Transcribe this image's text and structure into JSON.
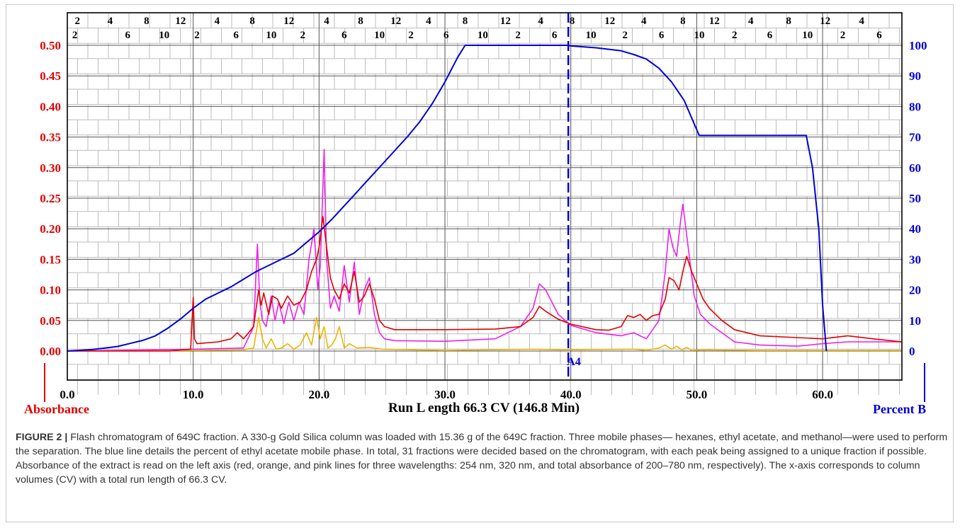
{
  "chart_data": {
    "type": "line",
    "xlabel": "Run L ength 66.3 CV (146.8 Min)",
    "y_left_label": "Absorbance",
    "y_right_label": "Percent B",
    "xlim": [
      0,
      66.3
    ],
    "ylim_left": [
      0,
      0.5
    ],
    "ylim_right": [
      0,
      100
    ],
    "x_ticks": [
      "0.0",
      "10.0",
      "20.0",
      "30.0",
      "40.0",
      "50.0",
      "60.0"
    ],
    "x_tick_values": [
      0,
      10,
      20,
      30,
      40,
      50,
      60
    ],
    "y_left_ticks": [
      "0.00",
      "0.05",
      "0.10",
      "0.15",
      "0.20",
      "0.25",
      "0.30",
      "0.35",
      "0.40",
      "0.45",
      "0.50"
    ],
    "y_left_tick_values": [
      0,
      0.05,
      0.1,
      0.15,
      0.2,
      0.25,
      0.3,
      0.35,
      0.4,
      0.45,
      0.5
    ],
    "y_right_ticks": [
      "0",
      "10",
      "20",
      "30",
      "40",
      "50",
      "60",
      "70",
      "80",
      "90",
      "100"
    ],
    "y_right_tick_values": [
      0,
      10,
      20,
      30,
      40,
      50,
      60,
      70,
      80,
      90,
      100
    ],
    "grid": true,
    "marker": {
      "label": "A4",
      "x": 39.8
    },
    "fraction_ticks": {
      "row1": [
        [
          "2",
          0.8
        ],
        [
          "4",
          3.4
        ],
        [
          "8",
          6.3
        ],
        [
          "12",
          9.0
        ],
        [
          "4",
          11.9
        ],
        [
          "8",
          14.7
        ],
        [
          "12",
          17.6
        ],
        [
          "4",
          20.6
        ],
        [
          "8",
          23.3
        ],
        [
          "12",
          26.1
        ],
        [
          "4",
          28.7
        ],
        [
          "8",
          31.6
        ],
        [
          "12",
          34.8
        ],
        [
          "4",
          37.6
        ],
        [
          "8",
          40.1
        ],
        [
          "12",
          43.1
        ],
        [
          "4",
          45.8
        ],
        [
          "8",
          48.9
        ],
        [
          "12",
          51.4
        ],
        [
          "4",
          54.3
        ],
        [
          "8",
          57.3
        ],
        [
          "12",
          60.2
        ],
        [
          "4",
          63.1
        ]
      ],
      "row2": [
        [
          "2",
          0.6
        ],
        [
          "6",
          4.8
        ],
        [
          "10",
          7.7
        ],
        [
          "2",
          10.3
        ],
        [
          "6",
          13.4
        ],
        [
          "10",
          16.2
        ],
        [
          "2",
          18.7
        ],
        [
          "6",
          22.0
        ],
        [
          "10",
          24.8
        ],
        [
          "2",
          27.3
        ],
        [
          "6",
          30.1
        ],
        [
          "10",
          33.0
        ],
        [
          "2",
          35.8
        ],
        [
          "6",
          38.7
        ],
        [
          "10",
          41.6
        ],
        [
          "2",
          44.3
        ],
        [
          "6",
          47.2
        ],
        [
          "10",
          50.2
        ],
        [
          "2",
          53.0
        ],
        [
          "6",
          55.8
        ],
        [
          "10",
          58.8
        ],
        [
          "2",
          61.6
        ],
        [
          "6",
          64.5
        ]
      ]
    },
    "series": [
      {
        "name": "Percent B",
        "axis": "right",
        "color": "#0000d6",
        "x": [
          0,
          2,
          3,
          4,
          5,
          6,
          7,
          8,
          9,
          10,
          11,
          12,
          13,
          14,
          15,
          16,
          17,
          18,
          19,
          20,
          21,
          22,
          23,
          24,
          25,
          26,
          27,
          28,
          29,
          30,
          31,
          31.6,
          34,
          37,
          39.8,
          40,
          42,
          44,
          45,
          46,
          47,
          48,
          49,
          50.2,
          54,
          58,
          58.7,
          59.2,
          59.7,
          60.0,
          60.3
        ],
        "values": [
          0,
          0.5,
          1,
          1.5,
          2.5,
          3.5,
          5,
          7.5,
          10.5,
          14,
          17,
          19,
          21,
          23.5,
          26,
          28,
          30,
          32,
          35.5,
          39,
          43,
          47.5,
          52,
          56.5,
          61,
          65.5,
          70,
          75,
          81,
          88,
          96,
          100,
          100,
          100,
          100,
          99.8,
          99.2,
          98.2,
          97,
          95.5,
          92.5,
          88,
          82,
          70.5,
          70.5,
          70.5,
          70.5,
          60,
          40,
          15,
          0
        ]
      },
      {
        "name": "254 nm",
        "axis": "left",
        "color": "#e00000",
        "x": [
          0,
          8,
          9.8,
          10.0,
          10.1,
          10.3,
          12,
          13,
          13.5,
          14,
          14.8,
          15.2,
          15.4,
          15.6,
          16,
          16.3,
          16.7,
          17.0,
          17.5,
          18,
          18.5,
          19,
          19.4,
          19.8,
          20.0,
          20.3,
          20.6,
          20.9,
          21.2,
          21.6,
          22,
          22.4,
          22.8,
          23.2,
          23.6,
          24.0,
          24.4,
          24.8,
          25.2,
          26,
          30,
          34,
          36,
          37,
          37.5,
          38,
          39,
          40,
          42,
          43,
          44,
          44.5,
          45,
          45.5,
          46,
          46.5,
          47,
          47.5,
          47.8,
          48.2,
          48.6,
          48.9,
          49.2,
          49.6,
          50,
          50.5,
          51,
          52,
          53,
          55,
          58,
          60,
          62,
          64,
          66.3
        ],
        "values": [
          0.0,
          0.0,
          0.003,
          0.088,
          0.02,
          0.012,
          0.015,
          0.02,
          0.03,
          0.02,
          0.04,
          0.1,
          0.075,
          0.095,
          0.06,
          0.09,
          0.085,
          0.07,
          0.09,
          0.075,
          0.08,
          0.1,
          0.13,
          0.15,
          0.17,
          0.22,
          0.17,
          0.12,
          0.1,
          0.085,
          0.11,
          0.095,
          0.13,
          0.08,
          0.09,
          0.11,
          0.085,
          0.05,
          0.04,
          0.035,
          0.035,
          0.036,
          0.04,
          0.055,
          0.073,
          0.065,
          0.052,
          0.044,
          0.035,
          0.034,
          0.04,
          0.058,
          0.055,
          0.06,
          0.05,
          0.058,
          0.06,
          0.085,
          0.12,
          0.115,
          0.1,
          0.13,
          0.155,
          0.13,
          0.11,
          0.085,
          0.07,
          0.05,
          0.035,
          0.025,
          0.022,
          0.02,
          0.025,
          0.02,
          0.015
        ]
      },
      {
        "name": "Total absorbance 200–780 nm",
        "axis": "left",
        "color": "#ea22ea",
        "x": [
          0,
          10,
          14,
          14.8,
          15.1,
          15.3,
          15.5,
          15.8,
          16.2,
          16.5,
          16.8,
          17.2,
          17.6,
          18,
          18.4,
          18.8,
          19.2,
          19.6,
          19.9,
          20.1,
          20.4,
          20.6,
          20.9,
          21.2,
          21.6,
          22,
          22.4,
          22.8,
          23.2,
          23.6,
          24.0,
          24.4,
          24.8,
          25.2,
          26,
          30,
          34,
          36,
          37,
          37.5,
          38,
          39,
          40,
          42,
          44,
          45,
          46,
          47,
          47.5,
          47.8,
          48.1,
          48.4,
          48.7,
          48.9,
          49.2,
          49.5,
          49.8,
          50.3,
          51,
          52,
          53,
          55,
          58,
          60,
          62,
          64,
          66.3
        ],
        "values": [
          0.0,
          0.003,
          0.005,
          0.04,
          0.175,
          0.08,
          0.05,
          0.04,
          0.09,
          0.05,
          0.08,
          0.045,
          0.08,
          0.05,
          0.08,
          0.06,
          0.15,
          0.2,
          0.1,
          0.14,
          0.33,
          0.15,
          0.07,
          0.09,
          0.065,
          0.14,
          0.08,
          0.145,
          0.06,
          0.1,
          0.12,
          0.06,
          0.03,
          0.02,
          0.017,
          0.016,
          0.02,
          0.04,
          0.07,
          0.11,
          0.1,
          0.06,
          0.042,
          0.03,
          0.025,
          0.03,
          0.02,
          0.05,
          0.13,
          0.2,
          0.17,
          0.155,
          0.21,
          0.24,
          0.19,
          0.14,
          0.09,
          0.06,
          0.045,
          0.03,
          0.015,
          0.01,
          0.008,
          0.012,
          0.015,
          0.015,
          0.015
        ]
      },
      {
        "name": "320 nm",
        "axis": "left",
        "color": "#f0b400",
        "x": [
          0,
          10,
          14,
          14.8,
          15.2,
          15.5,
          15.8,
          16.2,
          16.6,
          17,
          17.5,
          18,
          18.5,
          19,
          19.4,
          19.8,
          20.1,
          20.4,
          20.7,
          21,
          21.3,
          21.6,
          22,
          22.4,
          23,
          24,
          25,
          30,
          37,
          39,
          45,
          46,
          47,
          47.5,
          48,
          48.4,
          48.8,
          49.2,
          49.6,
          50.5,
          55,
          60,
          66.3
        ],
        "values": [
          0.0,
          0.001,
          0.002,
          0.005,
          0.055,
          0.02,
          0.005,
          0.02,
          0.003,
          0.005,
          0.012,
          0.003,
          0.01,
          0.03,
          0.01,
          0.055,
          0.02,
          0.04,
          0.005,
          0.01,
          0.02,
          0.04,
          0.005,
          0.012,
          0.005,
          0.006,
          0.003,
          0.001,
          0.003,
          0.002,
          0.003,
          0.001,
          0.005,
          0.01,
          0.003,
          0.008,
          0.002,
          0.006,
          0.001,
          0.002,
          0.001,
          0.001,
          0.001
        ]
      }
    ]
  },
  "caption": {
    "label": "FIGURE 2 |",
    "text": "Flash chromatogram of 649C fraction. A 330-g Gold Silica column was loaded with 15.36 g of the 649C fraction. Three mobile phases— hexanes, ethyl acetate, and  methanol—were used to perform the separation. The blue line details the percent of ethyl acetate mobile phase. In total, 31 fractions were decided based on the chromatogram, with each peak being assigned to a unique fraction if possible. Absorbance of the extract is read on the left axis (red, orange, and pink lines for three wavelengths: 254 nm, 320 nm, and total absorbance of 200–780 nm, respectively). The x-axis corresponds to column volumes (CV) with a total run length of 66.3 CV."
  }
}
